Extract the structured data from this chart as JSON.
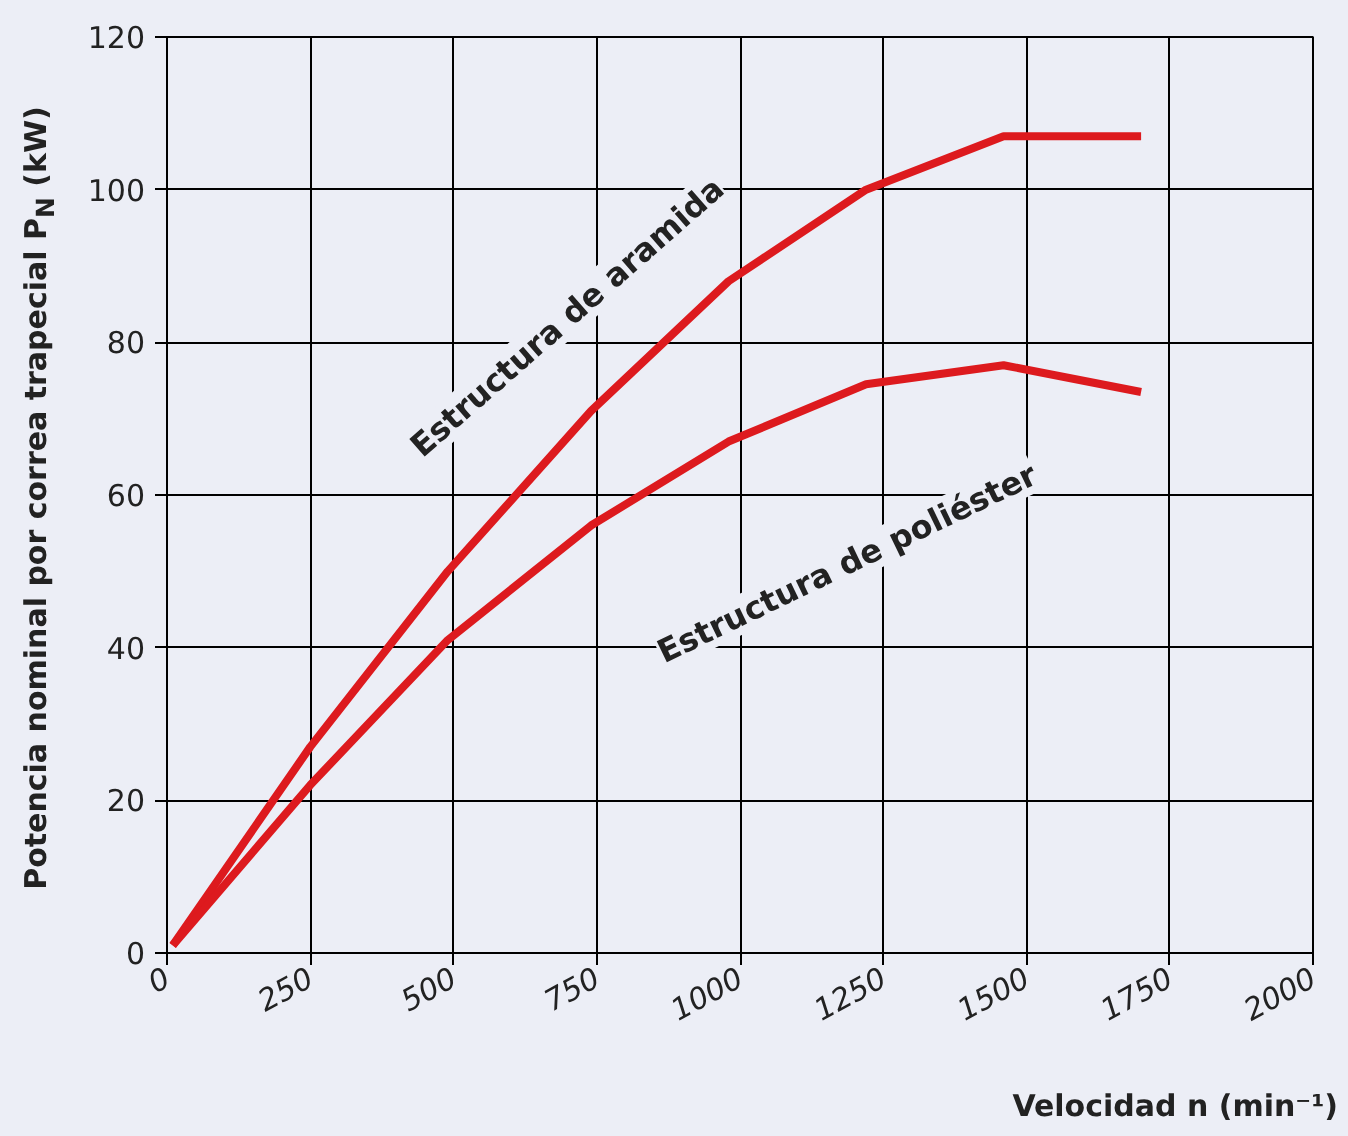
{
  "chart_data": {
    "type": "line",
    "xlabel": "Velocidad n (min⁻¹)",
    "ylabel": "Potencia nominal por correa trapecial P$_{N}$ (kW)",
    "x": [
      10,
      250,
      490,
      740,
      980,
      1220,
      1460,
      1700
    ],
    "series": [
      {
        "color": "#dd1a1e",
        "values": [
          1,
          27,
          50,
          71,
          88,
          100,
          107,
          107
        ]
      },
      {
        "color": "#dd1a1e",
        "values": [
          1,
          22,
          41,
          56,
          67,
          74.5,
          77,
          73.5
        ]
      }
    ],
    "xlim": [
      0,
      2000
    ],
    "ylim": [
      0,
      120
    ],
    "xticks": [
      0,
      250,
      500,
      750,
      1000,
      1250,
      1500,
      1750,
      2000
    ],
    "yticks": [
      0,
      20,
      40,
      60,
      80,
      100,
      120
    ],
    "grid": true,
    "marker": "none",
    "line_style": "solid",
    "annotations": [
      "Estructura de aramida",
      "Estructura de poliéster"
    ]
  }
}
